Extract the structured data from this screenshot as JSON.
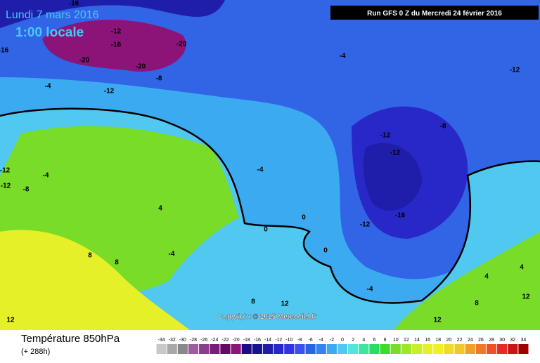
{
  "header": {
    "date": "Lundi 7 mars 2016",
    "time": "1:00 locale",
    "run": "Run GFS 0 Z du Mercredi 24 février 2016",
    "copyright": "Copyright © 2015 Meteociel.fr"
  },
  "footer": {
    "title": "Température 850hPa",
    "lead": "(+ 288h)"
  },
  "scale": {
    "labels": [
      "-34",
      "-32",
      "-30",
      "-28",
      "-26",
      "-24",
      "-22",
      "-20",
      "-18",
      "-16",
      "-14",
      "-12",
      "-10",
      "-8",
      "-6",
      "-4",
      "-2",
      "0",
      "2",
      "4",
      "6",
      "8",
      "10",
      "12",
      "14",
      "16",
      "18",
      "20",
      "22",
      "24",
      "26",
      "28",
      "30",
      "32",
      "34"
    ],
    "colors": [
      "#c8c8c8",
      "#a8a8a8",
      "#888888",
      "#a05aa0",
      "#8c3c8c",
      "#781e78",
      "#640a64",
      "#8c1478",
      "#1e0a82",
      "#14148c",
      "#1e1eaa",
      "#2828c8",
      "#3232e6",
      "#3c50f0",
      "#2864e6",
      "#3282f0",
      "#3caaf0",
      "#50c8f0",
      "#50e6dc",
      "#3ce6a0",
      "#28dc64",
      "#3cdc28",
      "#78dc28",
      "#a0e628",
      "#c8f028",
      "#e6f028",
      "#f0f028",
      "#f0dc28",
      "#f0c828",
      "#f0a028",
      "#f07828",
      "#f05028",
      "#e62828",
      "#c81414",
      "#a00000"
    ]
  },
  "contour_labels": [
    "-16",
    "-12",
    "-16",
    "-20",
    "-20",
    "-20",
    "-8",
    "-12",
    "-4",
    "-16",
    "-4",
    "-12",
    "-8",
    "-12",
    "-12",
    "-4",
    "-4",
    "-12",
    "-12",
    "-8",
    "4",
    "-4",
    "0",
    "0",
    "0",
    "-12",
    "-16",
    "8",
    "8",
    "4",
    "4",
    "-4",
    "8",
    "12",
    "12",
    "12",
    "12",
    "8"
  ]
}
